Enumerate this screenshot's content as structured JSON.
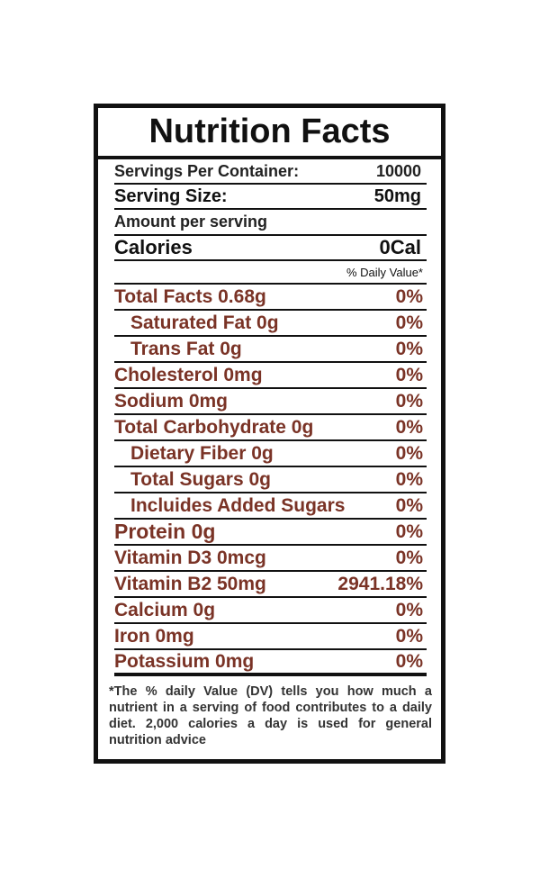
{
  "title": "Nutrition Facts",
  "servings_per_container": {
    "label": "Servings Per Container:",
    "value": "10000"
  },
  "serving_size": {
    "label": "Serving Size:",
    "value": "50mg"
  },
  "amount_per_serving": "Amount per serving",
  "calories": {
    "label": "Calories",
    "value": "0Cal"
  },
  "daily_value_header": "% Daily Value*",
  "nutrients": [
    {
      "name": "Total Facts 0.68g",
      "dv": "0%"
    },
    {
      "name": "Saturated Fat 0g",
      "dv": "0%"
    },
    {
      "name": "Trans Fat 0g",
      "dv": "0%"
    },
    {
      "name": "Cholesterol 0mg",
      "dv": "0%"
    },
    {
      "name": "Sodium 0mg",
      "dv": "0%"
    },
    {
      "name": "Total Carbohydrate 0g",
      "dv": "0%"
    },
    {
      "name": "Dietary Fiber 0g",
      "dv": "0%"
    },
    {
      "name": "Total Sugars 0g",
      "dv": "0%"
    },
    {
      "name": "Incluides Added Sugars",
      "dv": "0%"
    },
    {
      "name": "Protein 0g",
      "dv": "0%"
    },
    {
      "name": "Vitamin D3 0mcg",
      "dv": "0%"
    },
    {
      "name": "Vitamin B2 50mg",
      "dv": "2941.18%"
    },
    {
      "name": "Calcium 0g",
      "dv": "0%"
    },
    {
      "name": "Iron 0mg",
      "dv": "0%"
    },
    {
      "name": "Potassium 0mg",
      "dv": "0%"
    }
  ],
  "footnote": "*The % daily Value (DV) tells you how much a nutrient in a serving of food contributes to a daily diet. 2,000 calories a day  is used for general nutrition advice",
  "colors": {
    "nutrient_text": "#7a3326",
    "border": "#111111"
  }
}
